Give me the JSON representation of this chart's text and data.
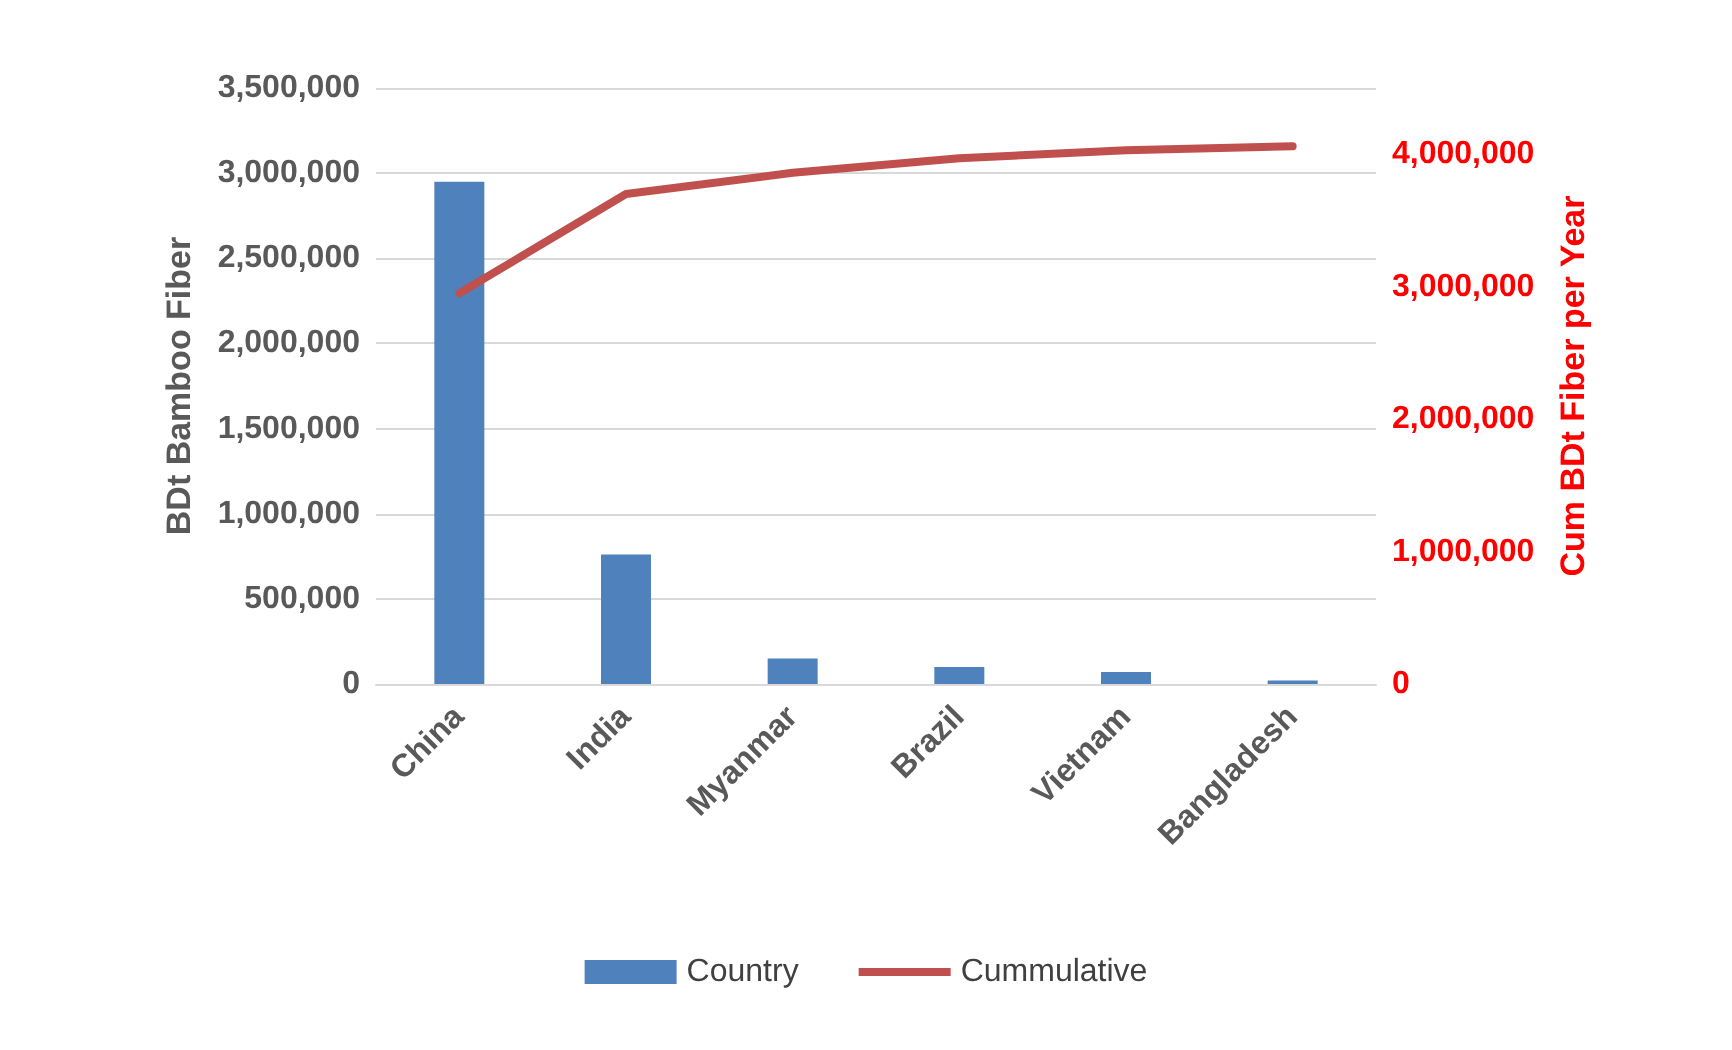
{
  "chart_data": {
    "type": "bar",
    "ylabel": "BDt Bamboo Fiber",
    "y2label": "Cum BDt Fiber per Year",
    "categories": [
      "China",
      "India",
      "Myanmar",
      "Brazil",
      "Vietnam",
      "Bangladesh"
    ],
    "series": [
      {
        "name": "Country",
        "color": "#4f81bd",
        "values": [
          2950000,
          760000,
          150000,
          100000,
          70000,
          20000
        ]
      },
      {
        "name": "Cummulative",
        "type": "line",
        "axis": "y2",
        "color": "#c0504d",
        "values": [
          2950000,
          3700000,
          3860000,
          3970000,
          4030000,
          4060000
        ]
      }
    ],
    "ylim": [
      0,
      3500000
    ],
    "yticks": [
      0,
      {
        "value": 500000,
        "label": "500,000"
      },
      {
        "value": 1000000,
        "label": "1,000,000"
      },
      {
        "value": 1500000,
        "label": "1,500,000"
      },
      {
        "value": 2000000,
        "label": "2,000,000"
      },
      {
        "value": 2500000,
        "label": "2,500,000"
      },
      {
        "value": 3000000,
        "label": "3,000,000"
      },
      {
        "value": 3500000,
        "label": "3,500,000"
      }
    ],
    "y2lim": [
      0,
      4500000
    ],
    "y2ticks": [
      0,
      {
        "value": 1000000,
        "label": "1,000,000"
      },
      {
        "value": 2000000,
        "label": "2,000,000"
      },
      {
        "value": 3000000,
        "label": "3,000,000"
      },
      {
        "value": 4000000,
        "label": "4,000,000"
      }
    ],
    "grid": "y",
    "legend": "bottom",
    "marker": "none",
    "line_style": "solid"
  }
}
